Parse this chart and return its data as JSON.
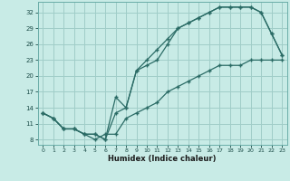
{
  "xlabel": "Humidex (Indice chaleur)",
  "bg_color": "#c8ebe6",
  "line_color": "#2a6b65",
  "grid_color": "#a0cdc8",
  "xlim": [
    -0.5,
    23.5
  ],
  "ylim": [
    7,
    34
  ],
  "xticks": [
    0,
    1,
    2,
    3,
    4,
    5,
    6,
    7,
    8,
    9,
    10,
    11,
    12,
    13,
    14,
    15,
    16,
    17,
    18,
    19,
    20,
    21,
    22,
    23
  ],
  "yticks": [
    8,
    11,
    14,
    17,
    20,
    23,
    26,
    29,
    32
  ],
  "line1_x": [
    0,
    1,
    2,
    3,
    4,
    5,
    6,
    7,
    8,
    9,
    10,
    11,
    12,
    13,
    14,
    15,
    16,
    17,
    18,
    19,
    20,
    21,
    22,
    23
  ],
  "line1_y": [
    13,
    12,
    10,
    10,
    9,
    9,
    8,
    16,
    14,
    21,
    23,
    25,
    27,
    29,
    30,
    31,
    32,
    33,
    33,
    33,
    33,
    32,
    28,
    24
  ],
  "line2_x": [
    0,
    1,
    2,
    3,
    4,
    5,
    6,
    7,
    8,
    9,
    10,
    11,
    12,
    13,
    14,
    15,
    16,
    17,
    18,
    19,
    20,
    21,
    22,
    23
  ],
  "line2_y": [
    13,
    12,
    10,
    10,
    9,
    9,
    8,
    13,
    14,
    21,
    22,
    23,
    26,
    29,
    30,
    31,
    32,
    33,
    33,
    33,
    33,
    32,
    28,
    24
  ],
  "line3_x": [
    0,
    1,
    2,
    3,
    4,
    5,
    6,
    7,
    8,
    9,
    10,
    11,
    12,
    13,
    14,
    15,
    16,
    17,
    18,
    19,
    20,
    21,
    22,
    23
  ],
  "line3_y": [
    13,
    12,
    10,
    10,
    9,
    8,
    9,
    9,
    12,
    13,
    14,
    15,
    17,
    18,
    19,
    20,
    21,
    22,
    22,
    22,
    23,
    23,
    23,
    23
  ]
}
